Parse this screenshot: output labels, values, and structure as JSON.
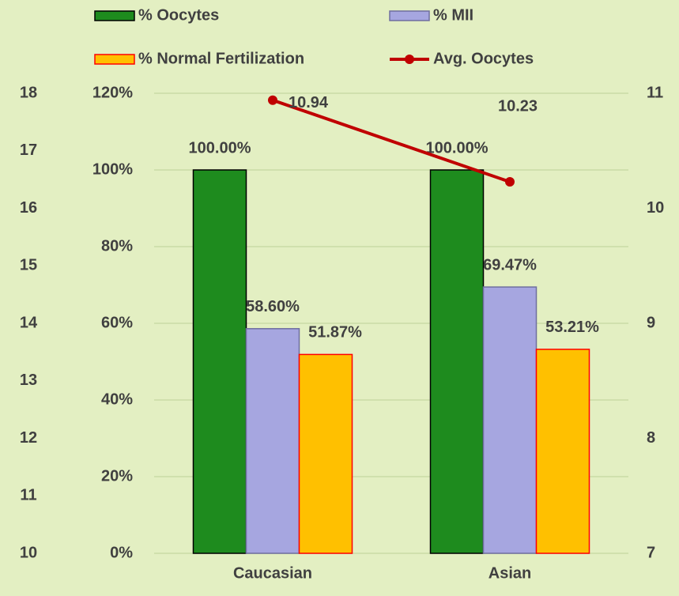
{
  "chart_data": {
    "type": "bar",
    "categories": [
      "Caucasian",
      "Asian"
    ],
    "series": [
      {
        "name": "% Oocytes",
        "color": "#1e8b1e",
        "edge": "#000000",
        "values": [
          100,
          100
        ],
        "value_labels": [
          "100.00%",
          "100.00%"
        ]
      },
      {
        "name": "% MII",
        "color": "#a6a6e0",
        "edge": "#6f6f9f",
        "values": [
          58.6,
          69.47
        ],
        "value_labels": [
          "58.60%",
          "69.47%"
        ]
      },
      {
        "name": "% Normal Fertilization",
        "color": "#ffc000",
        "edge": "#ff0000",
        "values": [
          51.87,
          53.21
        ],
        "value_labels": [
          "51.87%",
          "53.21%"
        ]
      },
      {
        "name": "Avg. Oocytes",
        "type": "line",
        "axis": "y2",
        "color": "#c00000",
        "values": [
          10.94,
          10.23
        ]
      }
    ],
    "ylim": [
      0,
      120
    ],
    "yticks": [
      {
        "value": 0,
        "label": "0%"
      },
      {
        "value": 20,
        "label": "20%"
      },
      {
        "value": 40,
        "label": "40%"
      },
      {
        "value": 60,
        "label": "60%"
      },
      {
        "value": 80,
        "label": "80%"
      },
      {
        "value": 100,
        "label": "100%"
      },
      {
        "value": 120,
        "label": "120%"
      }
    ],
    "y2lim": [
      7,
      11
    ],
    "y2ticks": [
      7,
      8,
      9,
      10,
      11
    ],
    "y3lim": [
      10,
      18
    ],
    "y3ticks": [
      10,
      11,
      12,
      13,
      14,
      15,
      16,
      17,
      18
    ],
    "grid": true,
    "legend": "top"
  }
}
